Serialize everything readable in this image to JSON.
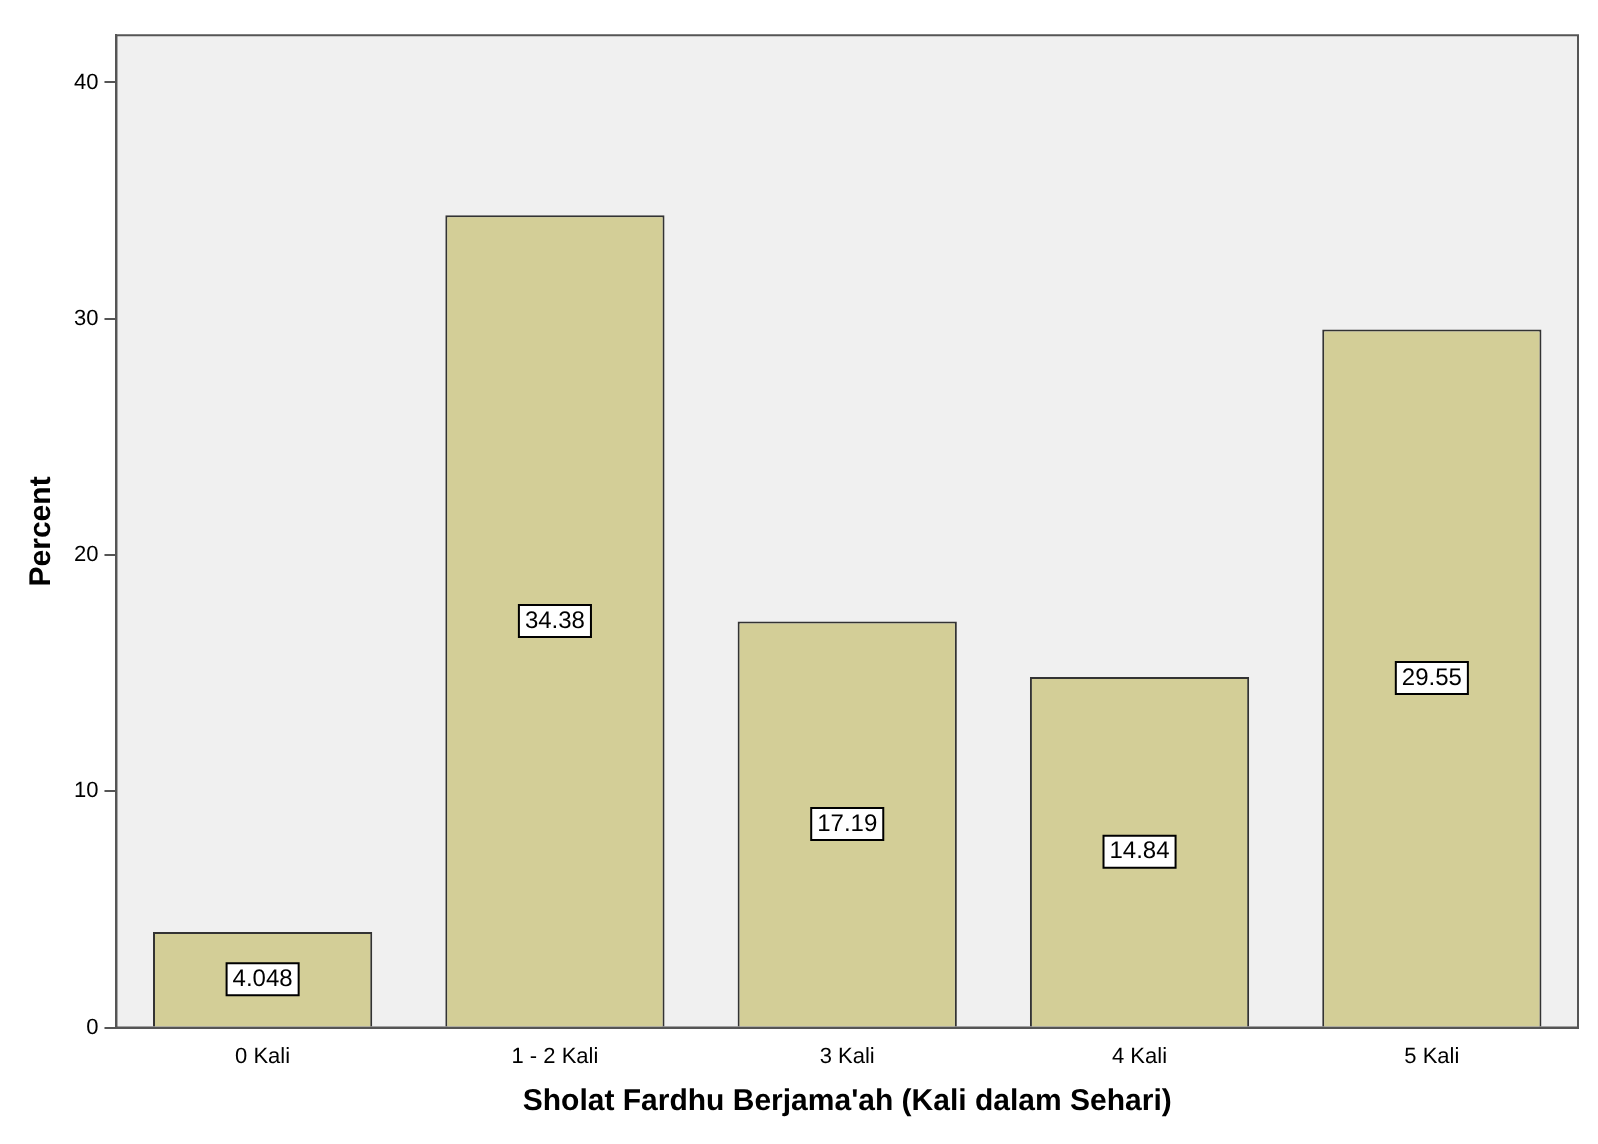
{
  "chart_data": {
    "type": "bar",
    "xlabel": "Sholat Fardhu Berjama'ah (Kali dalam Sehari)",
    "ylabel": "Percent",
    "categories": [
      "0 Kali",
      "1 - 2 Kali",
      "3 Kali",
      "4 Kali",
      "5 Kali"
    ],
    "values": [
      4.048,
      34.38,
      17.19,
      14.84,
      29.55
    ],
    "color": "#d3ce97",
    "ylim": [
      0,
      42
    ],
    "yticks": [
      0,
      10,
      20,
      30,
      40
    ],
    "grid": false,
    "legend": false,
    "data_labels": true
  }
}
